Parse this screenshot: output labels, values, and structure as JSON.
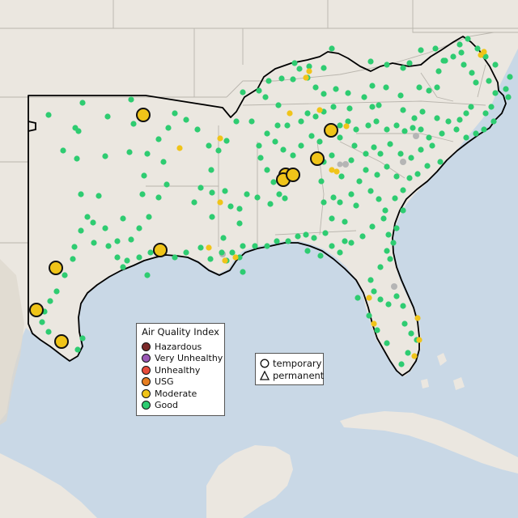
{
  "colors": {
    "ocean": "#c9d8e6",
    "land": "#ebe7e0",
    "terrain": "#ddd7cc",
    "borders": "#b9b5ad",
    "region_outline": "#000000",
    "good": "#2ecc71",
    "moderate": "#f0c419",
    "usg": "#e67e22",
    "unhealthy": "#e74c3c",
    "very_unhealthy": "#9b59b6",
    "hazardous": "#7b2a2a",
    "no_data": "#b5b5b5"
  },
  "aqi_legend": {
    "title": "Air Quality Index",
    "items": [
      {
        "label": "Hazardous",
        "color": "#7b2a2a"
      },
      {
        "label": "Very Unhealthy",
        "color": "#9b59b6"
      },
      {
        "label": "Unhealthy",
        "color": "#e74c3c"
      },
      {
        "label": "USG",
        "color": "#e67e22"
      },
      {
        "label": "Moderate",
        "color": "#f0c419"
      },
      {
        "label": "Good",
        "color": "#2ecc71"
      }
    ]
  },
  "type_legend": {
    "temporary": "temporary",
    "permanent": "permanent"
  },
  "monitor_summary": {
    "temporary_moderate_count": 11,
    "permanent_moderate_count": 18,
    "permanent_good_count": 272
  }
}
